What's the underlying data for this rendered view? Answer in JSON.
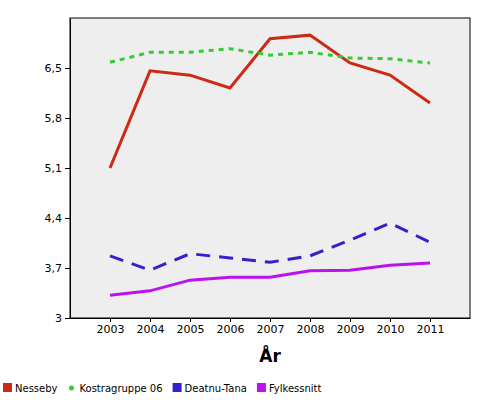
{
  "chart_data": {
    "type": "line",
    "x_label": "År",
    "x": [
      2003,
      2004,
      2005,
      2006,
      2007,
      2008,
      2009,
      2010,
      2011
    ],
    "xlim": [
      2002,
      2012
    ],
    "xticks": [
      2003,
      2004,
      2005,
      2006,
      2007,
      2008,
      2009,
      2010,
      2011
    ],
    "ylim": [
      3,
      7.2
    ],
    "yticks": [
      3,
      {
        "value": 3.7,
        "label": "3,7"
      },
      {
        "value": 4.4,
        "label": "4,4"
      },
      {
        "value": 5.1,
        "label": "5,1"
      },
      {
        "value": 5.8,
        "label": "5,8"
      },
      {
        "value": 6.5,
        "label": "6,5"
      }
    ],
    "grid": false,
    "legend": "bottom",
    "series": [
      {
        "name": "Nesseby",
        "color": "#cc2a14",
        "line_style": "solid",
        "values": [
          5.1,
          6.46,
          6.4,
          6.22,
          6.91,
          6.96,
          6.57,
          6.4,
          6.01
        ]
      },
      {
        "name": "Kostragruppe 06",
        "color": "#33cc33",
        "line_style": "dotted",
        "values": [
          6.58,
          6.72,
          6.72,
          6.77,
          6.68,
          6.72,
          6.64,
          6.63,
          6.57
        ]
      },
      {
        "name": "Deatnu-Tana",
        "color": "#3322cc",
        "line_style": "dashed",
        "values": [
          3.87,
          3.67,
          3.9,
          3.84,
          3.78,
          3.87,
          4.09,
          4.33,
          4.06
        ]
      },
      {
        "name": "Fylkessnitt",
        "color": "#bb11ee",
        "line_style": "solid",
        "values": [
          3.32,
          3.38,
          3.53,
          3.57,
          3.57,
          3.66,
          3.67,
          3.74,
          3.77
        ]
      }
    ]
  }
}
